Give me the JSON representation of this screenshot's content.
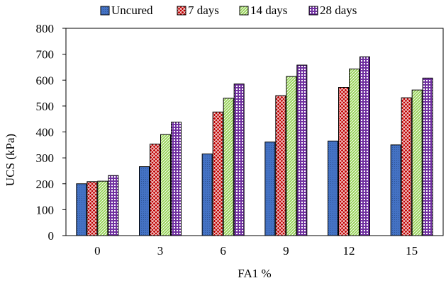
{
  "chart_data": {
    "type": "bar",
    "title": "",
    "xlabel": "FA1 %",
    "ylabel": "UCS (kPa)",
    "categories": [
      "0",
      "3",
      "6",
      "9",
      "12",
      "15"
    ],
    "ylim": [
      0,
      800
    ],
    "yticks": [
      0,
      100,
      200,
      300,
      400,
      500,
      600,
      700,
      800
    ],
    "grid": false,
    "legend_position": "top",
    "series": [
      {
        "name": "Uncured",
        "values": [
          200,
          266,
          315,
          361,
          365,
          350
        ],
        "color": "#4472C4",
        "pattern": "dots-blue"
      },
      {
        "name": "7 days",
        "values": [
          208,
          353,
          477,
          540,
          572,
          532
        ],
        "color": "#C00000",
        "pattern": "diamond-red"
      },
      {
        "name": "14 days",
        "values": [
          210,
          390,
          530,
          614,
          643,
          562
        ],
        "color": "#92D050",
        "pattern": "diag-green"
      },
      {
        "name": "28 days",
        "values": [
          232,
          438,
          585,
          658,
          690,
          608
        ],
        "color": "#7030A0",
        "pattern": "grid-purple"
      }
    ]
  }
}
